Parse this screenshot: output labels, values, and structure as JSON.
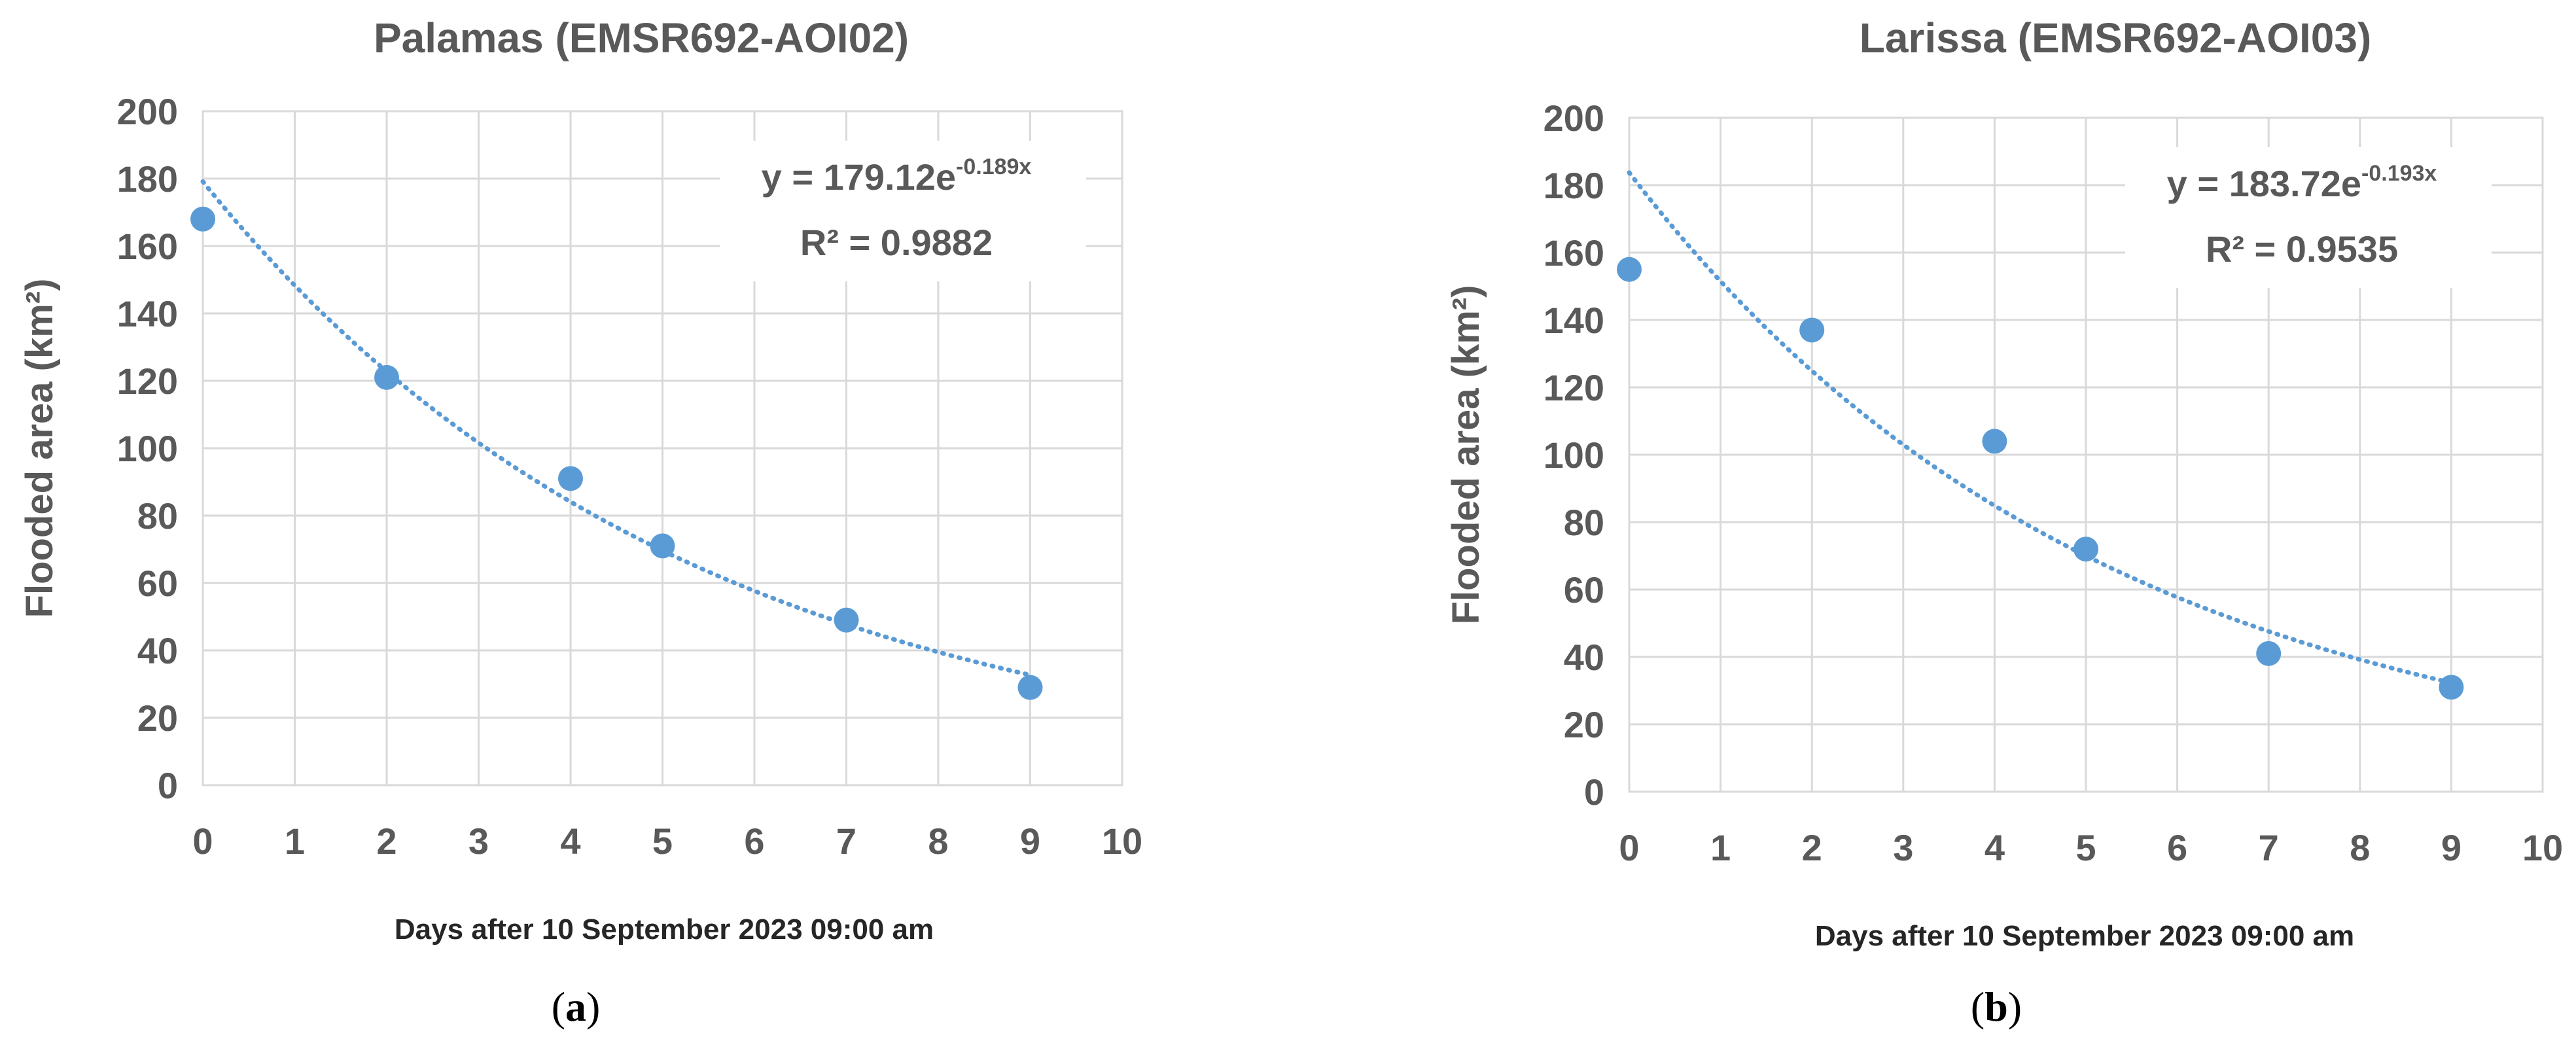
{
  "chart_data": [
    {
      "type": "scatter",
      "title": "Palamas (EMSR692-AOI02)",
      "xlabel": "Days after 10 September 2023 09:00 am",
      "ylabel": "Flooded area (km²)",
      "xlim": [
        0,
        10
      ],
      "ylim": [
        0,
        200
      ],
      "xticks": [
        0,
        1,
        2,
        3,
        4,
        5,
        6,
        7,
        8,
        9,
        10
      ],
      "yticks": [
        0,
        20,
        40,
        60,
        80,
        100,
        120,
        140,
        160,
        180,
        200
      ],
      "grid": true,
      "x": [
        0,
        2,
        4,
        5,
        7,
        9
      ],
      "y": [
        168,
        121,
        91,
        71,
        49,
        29
      ],
      "trendline": {
        "type": "exponential",
        "a": 179.12,
        "b": -0.189
      },
      "equation_main": "y = 179.12e",
      "equation_exp": "-0.189x",
      "r2_label": "R² = 0.9882",
      "caption_open": "(",
      "caption_letter": "a",
      "caption_close": ")",
      "color": "#5b9bd5"
    },
    {
      "type": "scatter",
      "title": "Larissa (EMSR692-AOI03)",
      "xlabel": "Days after 10 September 2023 09:00 am",
      "ylabel": "Flooded area (km²)",
      "xlim": [
        0,
        10
      ],
      "ylim": [
        0,
        200
      ],
      "xticks": [
        0,
        1,
        2,
        3,
        4,
        5,
        6,
        7,
        8,
        9,
        10
      ],
      "yticks": [
        0,
        20,
        40,
        60,
        80,
        100,
        120,
        140,
        160,
        180,
        200
      ],
      "grid": true,
      "x": [
        0,
        2,
        4,
        5,
        7,
        9
      ],
      "y": [
        155,
        137,
        104,
        72,
        41,
        31
      ],
      "trendline": {
        "type": "exponential",
        "a": 183.72,
        "b": -0.193
      },
      "equation_main": "y = 183.72e",
      "equation_exp": "-0.193x",
      "r2_label": "R² = 0.9535",
      "caption_open": "(",
      "caption_letter": "b",
      "caption_close": ")",
      "color": "#5b9bd5"
    }
  ]
}
